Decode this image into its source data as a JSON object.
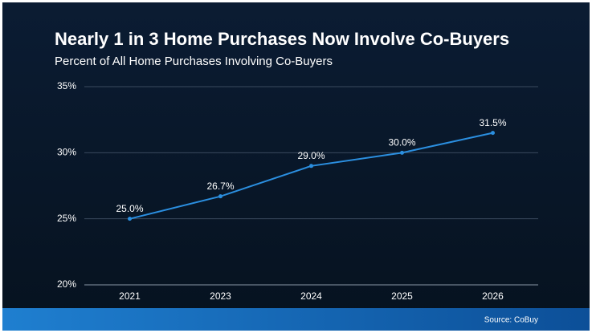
{
  "chart_data": {
    "type": "line",
    "title": "Nearly 1 in 3 Home Purchases Now Involve Co-Buyers",
    "subtitle": "Percent of All Home Purchases Involving Co-Buyers",
    "categories": [
      "2021",
      "2023",
      "2024",
      "2025",
      "2026"
    ],
    "values": [
      25.0,
      26.7,
      29.0,
      30.0,
      31.5
    ],
    "value_labels": [
      "25.0%",
      "26.7%",
      "29.0%",
      "30.0%",
      "31.5%"
    ],
    "color": "#2b8fe0",
    "ylim": [
      20,
      35
    ],
    "yticks": [
      {
        "value": 20,
        "label": "20%"
      },
      {
        "value": 25,
        "label": "25%"
      },
      {
        "value": 30,
        "label": "30%"
      },
      {
        "value": 35,
        "label": "35%"
      }
    ],
    "grid": true,
    "source": "Source: CoBuy"
  }
}
